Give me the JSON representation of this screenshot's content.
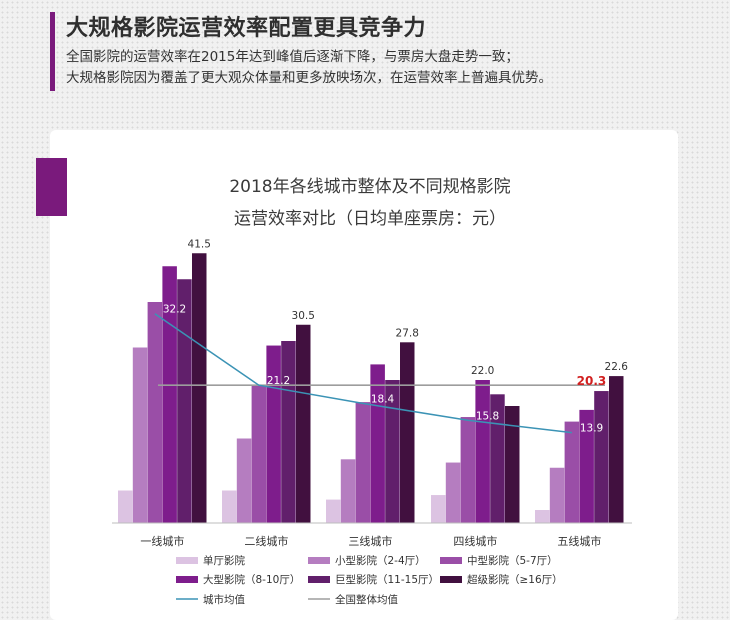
{
  "header": {
    "title": "大规格影院运营效率配置更具竞争力",
    "line1": "全国影院的运营效率在2015年达到峰值后逐渐下降，与票房大盘走势一致；",
    "line2": "大规格影院因为覆盖了更大观众体量和更多放映场次，在运营效率上普遍具优势。"
  },
  "chart_data": {
    "type": "bar",
    "title_line1": "2018年各线城市整体及不同规格影院",
    "title_line2": "运营效率对比（日均单座票房：元）",
    "categories": [
      "一线城市",
      "二线城市",
      "三线城市",
      "四线城市",
      "五线城市"
    ],
    "ylim": [
      0,
      45
    ],
    "series": [
      {
        "name": "单厅影院",
        "color": "#dcc3e2",
        "values": [
          5.0,
          5.0,
          3.6,
          4.3,
          2.0
        ]
      },
      {
        "name": "小型影院（2-4厅）",
        "color": "#b57dc0",
        "values": [
          27.0,
          13.0,
          9.8,
          9.3,
          8.5
        ]
      },
      {
        "name": "中型影院（5-7厅）",
        "color": "#9a4ea7",
        "values": [
          34.0,
          21.2,
          18.6,
          16.3,
          15.6
        ]
      },
      {
        "name": "大型影院（8-10厅）",
        "color": "#7e1d8c",
        "values": [
          39.5,
          27.3,
          24.4,
          22.0,
          17.4
        ]
      },
      {
        "name": "巨型影院（11-15厅）",
        "color": "#611f6b",
        "values": [
          37.5,
          28.0,
          22.0,
          19.8,
          20.3
        ]
      },
      {
        "name": "超级影院（≥16厅）",
        "color": "#41103f",
        "values": [
          41.5,
          30.5,
          27.8,
          18.0,
          22.6
        ]
      }
    ],
    "value_labels": [
      {
        "category": 0,
        "series": 5,
        "text": "41.5",
        "highlight": false
      },
      {
        "category": 1,
        "series": 5,
        "text": "30.5",
        "highlight": false
      },
      {
        "category": 2,
        "series": 5,
        "text": "27.8",
        "highlight": false
      },
      {
        "category": 3,
        "series": 3,
        "text": "22.0",
        "highlight": false
      },
      {
        "category": 4,
        "series": 4,
        "text": "20.3",
        "highlight": true
      },
      {
        "category": 4,
        "series": 5,
        "text": "22.6",
        "highlight": false
      }
    ],
    "city_average": {
      "name": "城市均值",
      "color": "#3b93b5",
      "values": [
        32.2,
        21.2,
        18.4,
        15.8,
        13.9
      ]
    },
    "national_average": {
      "name": "全国整体均值",
      "color": "#9d9d9d",
      "value": 21.2
    },
    "legend_position": "bottom"
  }
}
